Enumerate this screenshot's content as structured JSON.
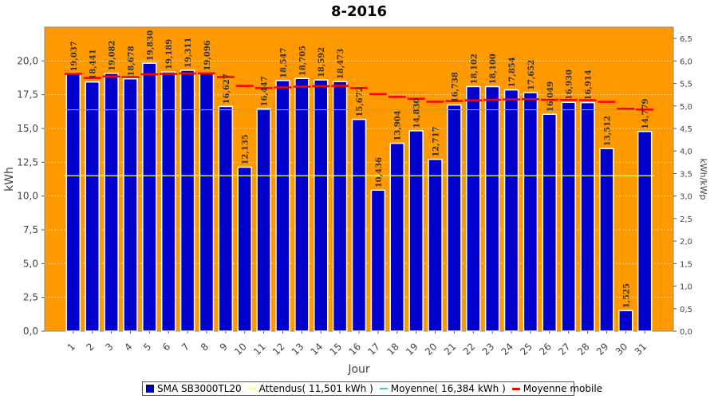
{
  "chart_data": {
    "type": "bar",
    "title": "8-2016",
    "xlabel": "Jour",
    "ylabel": "kWh",
    "y2label": "kWh/kWp",
    "ylim": [
      0,
      22.5
    ],
    "y2lim": [
      0,
      6.75
    ],
    "yticks": [
      "0,0",
      "2,5",
      "5,0",
      "7,5",
      "10,0",
      "12,5",
      "15,0",
      "17,5",
      "20,0"
    ],
    "y2ticks": [
      "0,0",
      "0,5",
      "1,0",
      "1,5",
      "2,0",
      "2,5",
      "3,0",
      "3,5",
      "4,0",
      "4,5",
      "5,0",
      "5,5",
      "6,0",
      "6,5"
    ],
    "categories": [
      "1",
      "2",
      "3",
      "4",
      "5",
      "6",
      "7",
      "8",
      "9",
      "10",
      "11",
      "12",
      "13",
      "14",
      "15",
      "16",
      "17",
      "18",
      "19",
      "20",
      "21",
      "22",
      "23",
      "24",
      "25",
      "26",
      "27",
      "28",
      "29",
      "30",
      "31"
    ],
    "series": [
      {
        "name": "SMA SB3000TL20",
        "type": "bar",
        "values": [
          19.037,
          18.441,
          19.082,
          18.678,
          19.83,
          19.189,
          19.311,
          19.096,
          16.627,
          12.135,
          16.447,
          18.547,
          18.705,
          18.592,
          18.473,
          15.672,
          10.436,
          13.904,
          14.83,
          12.717,
          16.738,
          18.102,
          18.1,
          17.854,
          17.652,
          16.049,
          16.93,
          16.914,
          13.512,
          1.525,
          14.779
        ],
        "labels": [
          "19,037",
          "18,441",
          "19,082",
          "18,678",
          "19,830",
          "19,189",
          "19,311",
          "19,096",
          "16,627",
          "12,135",
          "16,447",
          "18,547",
          "18,705",
          "18,592",
          "18,473",
          "15,672",
          "10,436",
          "13,904",
          "14,830",
          "12,717",
          "16,738",
          "18,102",
          "18,100",
          "17,854",
          "17,652",
          "16,049",
          "16,930",
          "16,914",
          "13,512",
          "1,525",
          "14,779"
        ]
      },
      {
        "name": "Attendus( 11,501 kWh )",
        "type": "line",
        "values": [
          11.501,
          11.501,
          11.501,
          11.501,
          11.501,
          11.501,
          11.501,
          11.501,
          11.501,
          11.501,
          11.501,
          11.501,
          11.501,
          11.501,
          11.501,
          11.501,
          11.501,
          11.501,
          11.501,
          11.501,
          11.501,
          11.501,
          11.501,
          11.501,
          11.501,
          11.501,
          11.501,
          11.501,
          11.501,
          11.501,
          11.501
        ]
      },
      {
        "name": "Moyenne( 16,384 kWh )",
        "type": "line",
        "values": [
          16.384,
          16.384,
          16.384,
          16.384,
          16.384,
          16.384,
          16.384,
          16.384,
          16.384,
          16.384,
          16.384,
          16.384,
          16.384,
          16.384,
          16.384,
          16.384,
          16.384,
          16.384,
          16.384,
          16.384,
          16.384,
          16.384,
          16.384,
          16.384,
          16.384,
          16.384,
          16.384,
          16.384,
          16.384,
          16.384,
          16.384
        ]
      },
      {
        "name": "Moyenne mobile",
        "type": "step",
        "values": [
          19.04,
          18.74,
          18.85,
          18.81,
          19.01,
          19.04,
          19.08,
          19.08,
          18.81,
          18.15,
          17.99,
          18.04,
          18.09,
          18.13,
          18.15,
          17.99,
          17.55,
          17.34,
          17.2,
          16.98,
          17.03,
          17.08,
          17.12,
          17.15,
          17.17,
          17.12,
          17.11,
          17.1,
          16.97,
          16.46,
          16.4
        ]
      }
    ],
    "colors": {
      "plot_bg": "#ff9900",
      "bar": "#0000cc",
      "attendus": "#ffff66",
      "moyenne": "#33cccc",
      "mobile": "#ff0000"
    },
    "grid": true,
    "legend_position": "bottom"
  }
}
